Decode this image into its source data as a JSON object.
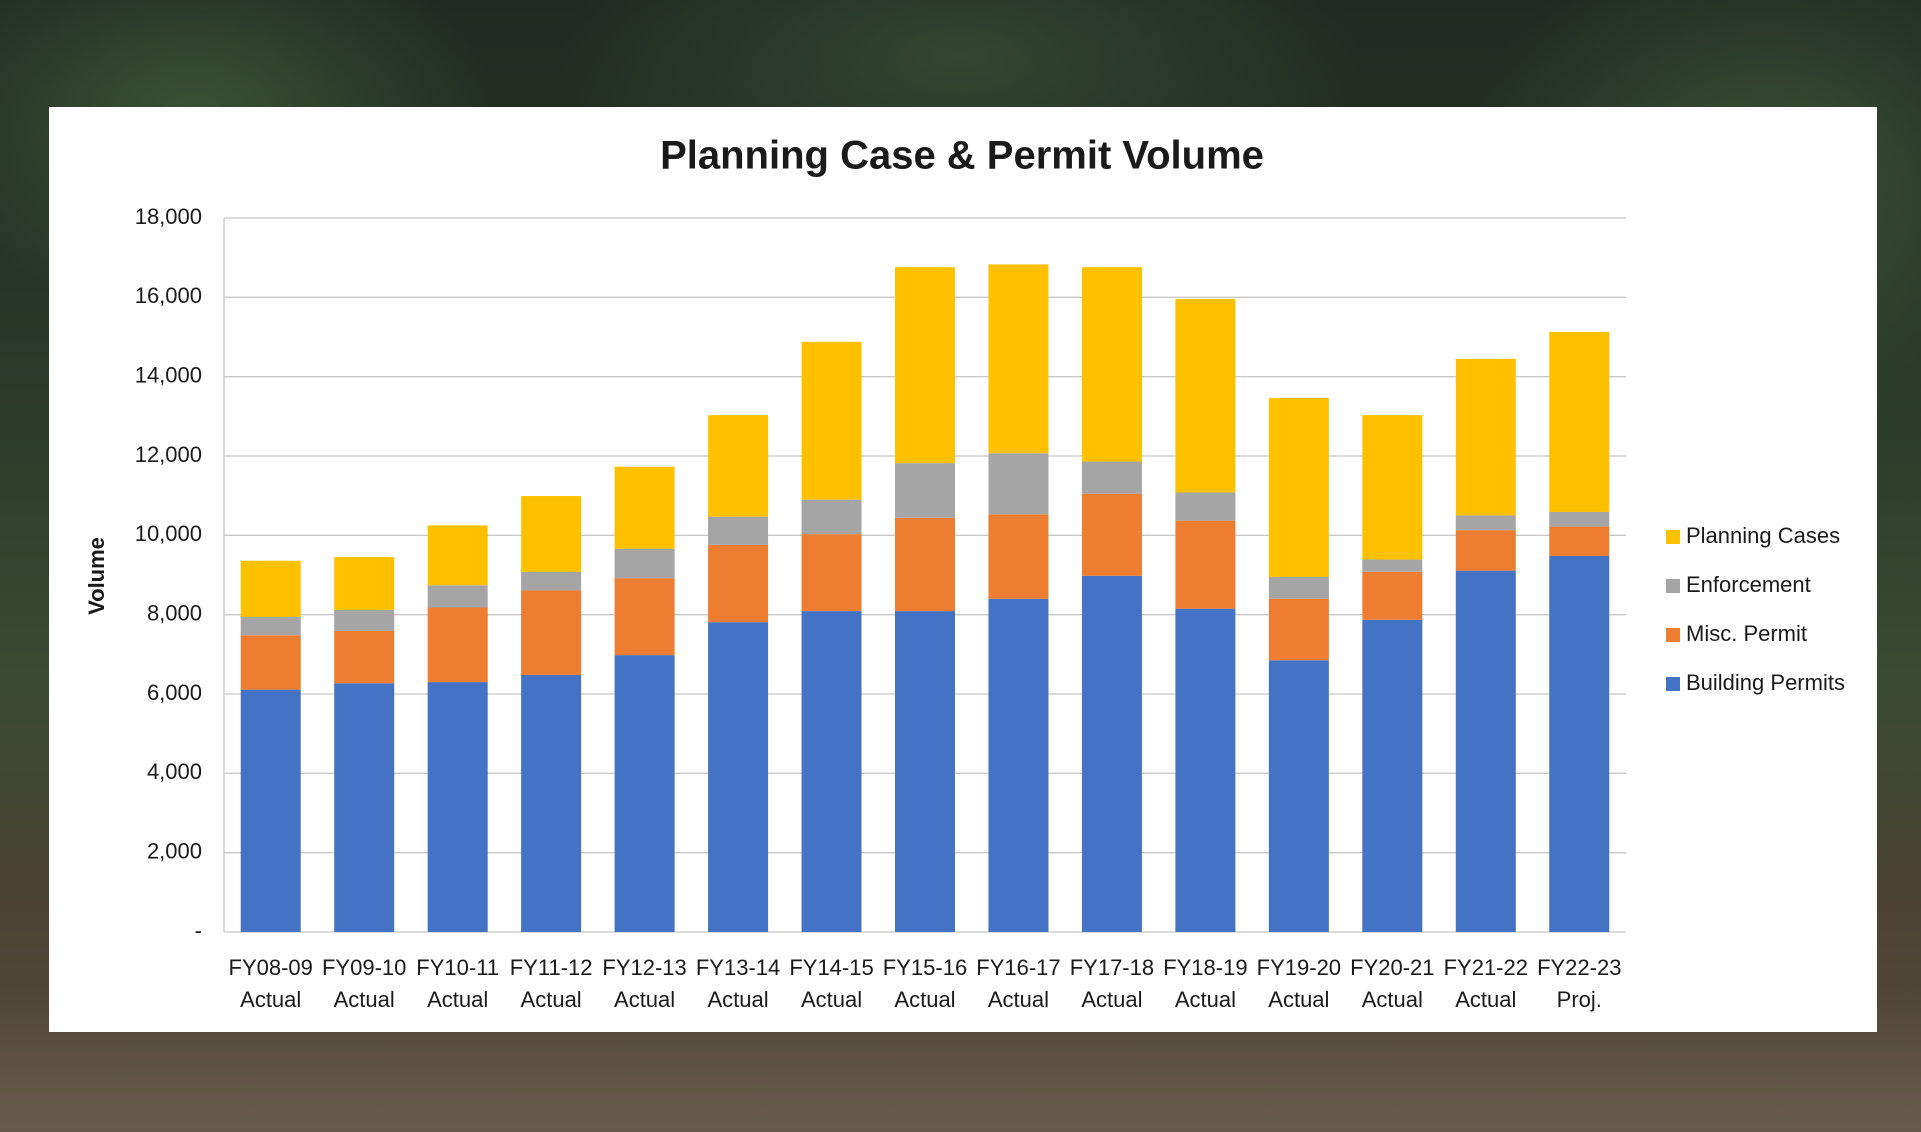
{
  "chart_data": {
    "type": "stacked_bar",
    "title": "Planning Case & Permit Volume",
    "y_label": "Volume",
    "categories": [
      "FY08-09 Actual",
      "FY09-10 Actual",
      "FY10-11 Actual",
      "FY11-12 Actual",
      "FY12-13 Actual",
      "FY13-14 Actual",
      "FY14-15 Actual",
      "FY15-16 Actual",
      "FY16-17 Actual",
      "FY17-18 Actual",
      "FY18-19 Actual",
      "FY19-20 Actual",
      "FY20-21 Actual",
      "FY21-22 Actual",
      "FY22-23 Proj."
    ],
    "series": [
      {
        "name": "Building Permits",
        "color": "#4472c4",
        "values": [
          6110,
          6270,
          6300,
          6480,
          6980,
          7810,
          8090,
          8090,
          8400,
          8980,
          8150,
          6850,
          7870,
          9110,
          9480
        ]
      },
      {
        "name": "Misc. Permit",
        "color": "#ed7d31",
        "values": [
          1370,
          1320,
          1880,
          2130,
          1940,
          1950,
          1940,
          2350,
          2130,
          2070,
          2220,
          1550,
          1210,
          1020,
          740
        ]
      },
      {
        "name": "Enforcement",
        "color": "#a5a5a5",
        "values": [
          460,
          530,
          560,
          470,
          740,
          710,
          870,
          1380,
          1540,
          810,
          710,
          550,
          310,
          370,
          370
        ]
      },
      {
        "name": "Planning Cases",
        "color": "#ffc000",
        "values": [
          1420,
          1330,
          1510,
          1910,
          2070,
          2560,
          3980,
          4940,
          4760,
          4900,
          4880,
          4510,
          3640,
          3950,
          4540
        ]
      }
    ],
    "ylim": [
      0,
      18000
    ],
    "yticks": [
      {
        "value": 0,
        "label": "-"
      },
      {
        "value": 2000,
        "label": "2,000"
      },
      {
        "value": 4000,
        "label": "4,000"
      },
      {
        "value": 6000,
        "label": "6,000"
      },
      {
        "value": 8000,
        "label": "8,000"
      },
      {
        "value": 10000,
        "label": "10,000"
      },
      {
        "value": 12000,
        "label": "12,000"
      },
      {
        "value": 14000,
        "label": "14,000"
      },
      {
        "value": 16000,
        "label": "16,000"
      },
      {
        "value": 18000,
        "label": "18,000"
      }
    ],
    "grid": true,
    "legend": "right"
  }
}
